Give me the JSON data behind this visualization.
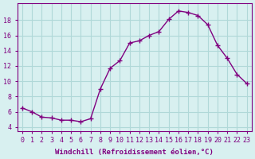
{
  "x": [
    0,
    1,
    2,
    3,
    4,
    5,
    6,
    7,
    8,
    9,
    10,
    11,
    12,
    13,
    14,
    15,
    16,
    17,
    18,
    19,
    20,
    21,
    22,
    23
  ],
  "y": [
    6.5,
    6.0,
    5.3,
    5.2,
    4.9,
    4.9,
    4.7,
    5.1,
    9.0,
    11.7,
    12.7,
    15.0,
    15.3,
    16.0,
    16.5,
    18.1,
    19.2,
    19.0,
    18.6,
    17.4,
    14.7,
    13.0,
    10.9,
    9.7
  ],
  "line_color": "#800080",
  "bg_color": "#d8f0f0",
  "grid_color": "#b0d8d8",
  "xlabel": "Windchill (Refroidissement éolien,°C)",
  "xlabel_color": "#800080",
  "tick_color": "#800080",
  "yticks": [
    4,
    6,
    8,
    10,
    12,
    14,
    16,
    18
  ],
  "ylim": [
    3.5,
    20.2
  ],
  "xlim": [
    -0.5,
    23.5
  ]
}
